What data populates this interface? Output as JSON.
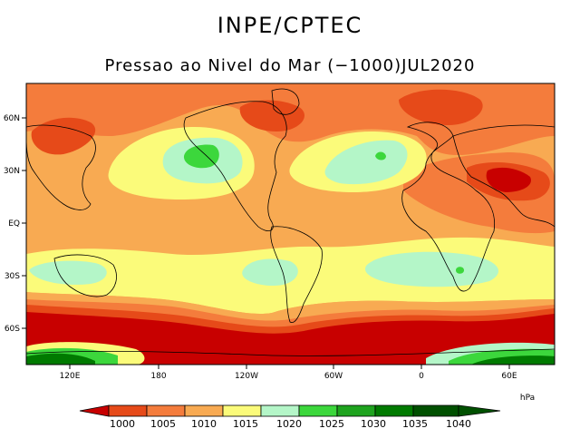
{
  "header": {
    "organization": "INPE/CPTEC",
    "title": "Pressao ao Nivel do Mar (−1000)JUL2020"
  },
  "map": {
    "lat_labels": [
      "60N",
      "30N",
      "EQ",
      "30S",
      "60S"
    ],
    "lon_labels": [
      "120E",
      "180",
      "120W",
      "60W",
      "0",
      "60E"
    ]
  },
  "legend": {
    "unit": "hPa",
    "levels": [
      "1000",
      "1005",
      "1010",
      "1015",
      "1020",
      "1025",
      "1030",
      "1035",
      "1040"
    ],
    "colors": [
      "#c80000",
      "#e64a19",
      "#f47c3c",
      "#f8aa52",
      "#fbfb7a",
      "#b4f6c8",
      "#3cd73c",
      "#1ea31e",
      "#007a00",
      "#005000"
    ]
  }
}
